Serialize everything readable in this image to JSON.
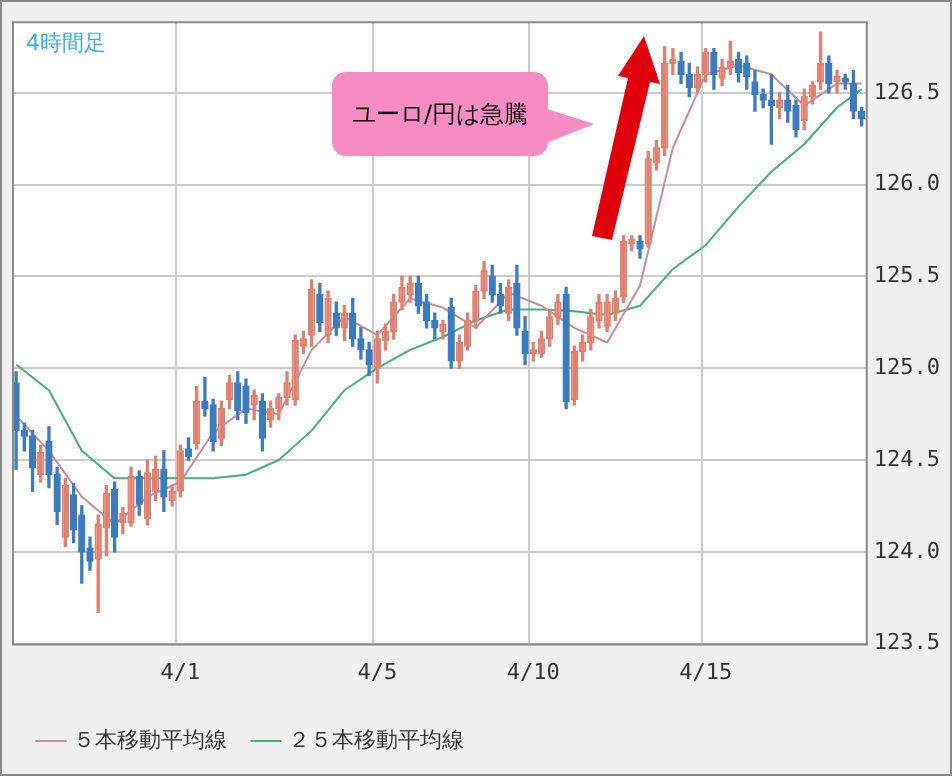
{
  "chart_data": {
    "type": "candlestick",
    "title": "4時間足",
    "annotations": [
      "ユーロ/円は急騰"
    ],
    "categories": [
      null,
      null,
      null,
      null,
      null,
      null,
      null,
      null,
      null,
      null,
      null,
      null,
      null,
      null,
      null,
      null,
      null,
      null,
      null,
      null,
      "4/1",
      null,
      null,
      null,
      null,
      null,
      null,
      null,
      null,
      null,
      null,
      null,
      null,
      null,
      null,
      null,
      null,
      null,
      null,
      null,
      null,
      null,
      null,
      null,
      "4/5",
      null,
      null,
      null,
      null,
      null,
      null,
      null,
      null,
      null,
      null,
      null,
      null,
      null,
      null,
      null,
      null,
      null,
      null,
      "4/10",
      null,
      null,
      null,
      null,
      null,
      null,
      null,
      null,
      null,
      null,
      null,
      null,
      null,
      null,
      null,
      null,
      null,
      null,
      null,
      null,
      "4/15",
      null,
      null,
      null,
      null,
      null,
      null,
      null,
      null,
      null,
      null,
      null,
      null,
      null,
      null,
      null,
      null,
      null,
      null,
      null
    ],
    "ohlc": [
      [
        124.92,
        124.98,
        124.45,
        124.66
      ],
      [
        124.66,
        124.7,
        124.55,
        124.63
      ],
      [
        124.63,
        124.66,
        124.33,
        124.46
      ],
      [
        124.42,
        124.58,
        124.38,
        124.54
      ],
      [
        124.6,
        124.68,
        124.35,
        124.42
      ],
      [
        124.42,
        124.46,
        124.15,
        124.22
      ],
      [
        124.08,
        124.4,
        124.03,
        124.36
      ],
      [
        124.31,
        124.37,
        124.05,
        124.12
      ],
      [
        124.2,
        124.25,
        123.83,
        124.0
      ],
      [
        124.02,
        124.08,
        123.9,
        123.95
      ],
      [
        123.96,
        124.2,
        123.67,
        124.15
      ],
      [
        124.13,
        124.36,
        123.98,
        124.32
      ],
      [
        124.34,
        124.38,
        124.0,
        124.08
      ],
      [
        124.16,
        124.24,
        124.1,
        124.21
      ],
      [
        124.16,
        124.46,
        124.14,
        124.41
      ],
      [
        124.41,
        124.44,
        124.2,
        124.26
      ],
      [
        124.18,
        124.5,
        124.15,
        124.43
      ],
      [
        124.33,
        124.52,
        124.28,
        124.45
      ],
      [
        124.45,
        124.55,
        124.22,
        124.3
      ],
      [
        124.28,
        124.36,
        124.25,
        124.33
      ],
      [
        124.33,
        124.58,
        124.3,
        124.55
      ],
      [
        124.56,
        124.62,
        124.5,
        124.52
      ],
      [
        124.59,
        124.9,
        124.56,
        124.82
      ],
      [
        124.82,
        124.95,
        124.74,
        124.78
      ],
      [
        124.8,
        124.83,
        124.55,
        124.6
      ],
      [
        124.62,
        124.82,
        124.58,
        124.78
      ],
      [
        124.83,
        124.96,
        124.78,
        124.92
      ],
      [
        124.92,
        124.98,
        124.72,
        124.77
      ],
      [
        124.9,
        124.94,
        124.7,
        124.76
      ],
      [
        124.8,
        124.88,
        124.72,
        124.85
      ],
      [
        124.82,
        124.86,
        124.55,
        124.62
      ],
      [
        124.72,
        124.82,
        124.68,
        124.78
      ],
      [
        124.78,
        124.86,
        124.72,
        124.84
      ],
      [
        124.84,
        124.98,
        124.8,
        124.92
      ],
      [
        124.83,
        125.18,
        124.8,
        125.15
      ],
      [
        125.12,
        125.2,
        125.08,
        125.16
      ],
      [
        125.18,
        125.48,
        125.12,
        125.43
      ],
      [
        125.4,
        125.46,
        125.2,
        125.25
      ],
      [
        125.18,
        125.42,
        125.14,
        125.38
      ],
      [
        125.3,
        125.36,
        125.18,
        125.22
      ],
      [
        125.22,
        125.34,
        125.15,
        125.3
      ],
      [
        125.3,
        125.38,
        125.12,
        125.16
      ],
      [
        125.16,
        125.22,
        125.05,
        125.1
      ],
      [
        125.1,
        125.14,
        124.96,
        125.02
      ],
      [
        125.0,
        125.2,
        124.92,
        125.16
      ],
      [
        125.15,
        125.24,
        125.1,
        125.2
      ],
      [
        125.2,
        125.4,
        125.16,
        125.36
      ],
      [
        125.36,
        125.5,
        125.32,
        125.44
      ],
      [
        125.4,
        125.5,
        125.36,
        125.46
      ],
      [
        125.46,
        125.5,
        125.3,
        125.34
      ],
      [
        125.36,
        125.4,
        125.22,
        125.26
      ],
      [
        125.26,
        125.3,
        125.16,
        125.22
      ],
      [
        125.2,
        125.26,
        125.16,
        125.24
      ],
      [
        125.33,
        125.38,
        125.0,
        125.04
      ],
      [
        125.04,
        125.18,
        125.0,
        125.14
      ],
      [
        125.12,
        125.3,
        125.1,
        125.26
      ],
      [
        125.26,
        125.45,
        125.22,
        125.42
      ],
      [
        125.42,
        125.58,
        125.38,
        125.53
      ],
      [
        125.5,
        125.56,
        125.36,
        125.4
      ],
      [
        125.4,
        125.46,
        125.3,
        125.34
      ],
      [
        125.3,
        125.48,
        125.26,
        125.44
      ],
      [
        125.46,
        125.56,
        125.18,
        125.22
      ],
      [
        125.2,
        125.28,
        125.02,
        125.08
      ],
      [
        125.08,
        125.14,
        125.04,
        125.1
      ],
      [
        125.08,
        125.2,
        125.06,
        125.16
      ],
      [
        125.16,
        125.32,
        125.12,
        125.28
      ],
      [
        125.28,
        125.4,
        125.24,
        125.36
      ],
      [
        125.4,
        125.44,
        124.78,
        124.82
      ],
      [
        124.83,
        125.12,
        124.8,
        125.09
      ],
      [
        125.09,
        125.18,
        125.04,
        125.14
      ],
      [
        125.14,
        125.32,
        125.1,
        125.28
      ],
      [
        125.26,
        125.4,
        125.22,
        125.36
      ],
      [
        125.23,
        125.4,
        125.2,
        125.36
      ],
      [
        125.3,
        125.42,
        125.26,
        125.38
      ],
      [
        125.39,
        125.72,
        125.36,
        125.69
      ],
      [
        125.68,
        125.72,
        125.64,
        125.7
      ],
      [
        125.69,
        125.72,
        125.6,
        125.65
      ],
      [
        125.68,
        126.18,
        125.66,
        126.14
      ],
      [
        126.12,
        126.24,
        126.08,
        126.2
      ],
      [
        126.2,
        126.75,
        126.16,
        126.66
      ],
      [
        126.66,
        126.74,
        126.6,
        126.68
      ],
      [
        126.67,
        126.72,
        126.55,
        126.6
      ],
      [
        126.6,
        126.66,
        126.48,
        126.53
      ],
      [
        126.53,
        126.64,
        126.5,
        126.6
      ],
      [
        126.6,
        126.74,
        126.56,
        126.72
      ],
      [
        126.72,
        126.74,
        126.52,
        126.6
      ],
      [
        126.58,
        126.68,
        126.54,
        126.64
      ],
      [
        126.64,
        126.78,
        126.6,
        126.67
      ],
      [
        126.68,
        126.72,
        126.56,
        126.61
      ],
      [
        126.66,
        126.7,
        126.52,
        126.59
      ],
      [
        126.56,
        126.62,
        126.4,
        126.49
      ],
      [
        126.49,
        126.52,
        126.42,
        126.46
      ],
      [
        126.46,
        126.6,
        126.22,
        126.43
      ],
      [
        126.42,
        126.5,
        126.36,
        126.46
      ],
      [
        126.46,
        126.54,
        126.34,
        126.4
      ],
      [
        126.43,
        126.46,
        126.26,
        126.3
      ],
      [
        126.35,
        126.52,
        126.3,
        126.48
      ],
      [
        126.48,
        126.56,
        126.44,
        126.54
      ],
      [
        126.56,
        126.83,
        126.52,
        126.66
      ],
      [
        126.66,
        126.7,
        126.5,
        126.55
      ],
      [
        126.56,
        126.62,
        126.5,
        126.59
      ],
      [
        126.58,
        126.6,
        126.52,
        126.56
      ],
      [
        126.55,
        126.62,
        126.36,
        126.4
      ],
      [
        126.4,
        126.42,
        126.32,
        126.36
      ]
    ],
    "colors": [
      "#3d7bbf",
      "#3d7bbf",
      "#3d7bbf",
      "#e0806f",
      "#3d7bbf",
      "#3d7bbf",
      "#e0806f",
      "#3d7bbf",
      "#3d7bbf",
      "#3d7bbf",
      "#e0806f",
      "#e0806f",
      "#3d7bbf",
      "#e0806f",
      "#e0806f",
      "#3d7bbf",
      "#e0806f",
      "#e0806f",
      "#3d7bbf",
      "#e0806f",
      "#e0806f",
      "#3d7bbf",
      "#e0806f",
      "#3d7bbf",
      "#3d7bbf",
      "#e0806f",
      "#e0806f",
      "#3d7bbf",
      "#3d7bbf",
      "#e0806f",
      "#3d7bbf",
      "#e0806f",
      "#e0806f",
      "#e0806f",
      "#e0806f",
      "#e0806f",
      "#e0806f",
      "#3d7bbf",
      "#e0806f",
      "#3d7bbf",
      "#e0806f",
      "#3d7bbf",
      "#3d7bbf",
      "#3d7bbf",
      "#e0806f",
      "#e0806f",
      "#e0806f",
      "#e0806f",
      "#e0806f",
      "#3d7bbf",
      "#3d7bbf",
      "#3d7bbf",
      "#e0806f",
      "#3d7bbf",
      "#e0806f",
      "#e0806f",
      "#e0806f",
      "#e0806f",
      "#3d7bbf",
      "#3d7bbf",
      "#e0806f",
      "#3d7bbf",
      "#3d7bbf",
      "#e0806f",
      "#e0806f",
      "#e0806f",
      "#e0806f",
      "#3d7bbf",
      "#e0806f",
      "#e0806f",
      "#e0806f",
      "#e0806f",
      "#e0806f",
      "#e0806f",
      "#e0806f",
      "#e0806f",
      "#3d7bbf",
      "#e0806f",
      "#e0806f",
      "#e0806f",
      "#e0806f",
      "#3d7bbf",
      "#3d7bbf",
      "#e0806f",
      "#e0806f",
      "#3d7bbf",
      "#e0806f",
      "#e0806f",
      "#3d7bbf",
      "#3d7bbf",
      "#3d7bbf",
      "#3d7bbf",
      "#3d7bbf",
      "#e0806f",
      "#3d7bbf",
      "#3d7bbf",
      "#e0806f",
      "#e0806f",
      "#e0806f",
      "#3d7bbf",
      "#e0806f",
      "#3d7bbf",
      "#3d7bbf",
      "#3d7bbf"
    ],
    "series": [
      {
        "type": "line",
        "name": "５本移動平均線",
        "color": "#c98aa0",
        "values": [
          124.74,
          null,
          null,
          null,
          124.55,
          null,
          null,
          null,
          124.3,
          null,
          null,
          null,
          124.15,
          null,
          null,
          null,
          124.3,
          null,
          null,
          null,
          124.38,
          null,
          null,
          null,
          124.65,
          null,
          null,
          null,
          124.78,
          null,
          null,
          null,
          124.75,
          null,
          null,
          null,
          125.1,
          null,
          null,
          null,
          125.28,
          null,
          null,
          null,
          125.18,
          null,
          null,
          null,
          125.38,
          null,
          null,
          null,
          125.33,
          null,
          null,
          null,
          125.22,
          null,
          null,
          null,
          125.41,
          null,
          null,
          null,
          125.34,
          null,
          null,
          null,
          125.22,
          null,
          null,
          null,
          125.14,
          null,
          null,
          null,
          125.45,
          null,
          null,
          null,
          126.2,
          null,
          null,
          null,
          126.6,
          null,
          null,
          null,
          126.65,
          null,
          null,
          null,
          126.6,
          null,
          null,
          null,
          126.43,
          null,
          null,
          null,
          126.55,
          null,
          null,
          126.55
        ]
      },
      {
        "type": "line",
        "name": "２５本移動平均線",
        "color": "#44b07a",
        "values": [
          125.02,
          null,
          null,
          null,
          124.88,
          null,
          null,
          null,
          124.55,
          null,
          null,
          null,
          124.4,
          null,
          null,
          null,
          124.4,
          null,
          null,
          null,
          124.4,
          null,
          null,
          null,
          124.4,
          null,
          null,
          null,
          124.42,
          null,
          null,
          null,
          124.5,
          null,
          null,
          null,
          124.66,
          null,
          null,
          null,
          124.88,
          null,
          null,
          null,
          125.0,
          null,
          null,
          null,
          125.1,
          null,
          null,
          null,
          125.17,
          null,
          null,
          null,
          125.26,
          null,
          null,
          null,
          125.32,
          null,
          null,
          null,
          125.32,
          null,
          null,
          null,
          125.31,
          null,
          null,
          null,
          125.29,
          null,
          null,
          null,
          125.34,
          null,
          null,
          null,
          125.54,
          null,
          null,
          null,
          125.67,
          null,
          null,
          null,
          125.88,
          null,
          null,
          null,
          126.07,
          null,
          null,
          null,
          126.22,
          null,
          null,
          null,
          126.42,
          null,
          null,
          126.52
        ]
      }
    ],
    "ylim": [
      123.5,
      126.89
    ],
    "yticks": [
      123.5,
      {
        "value": 124,
        "label": "124.0"
      },
      124.5,
      {
        "value": 125,
        "label": "125.0"
      },
      125.5,
      {
        "value": 126,
        "label": "126.0"
      },
      126.5
    ],
    "grid": true,
    "legend": "bottom left",
    "marker": "none",
    "line_style": "solid"
  }
}
